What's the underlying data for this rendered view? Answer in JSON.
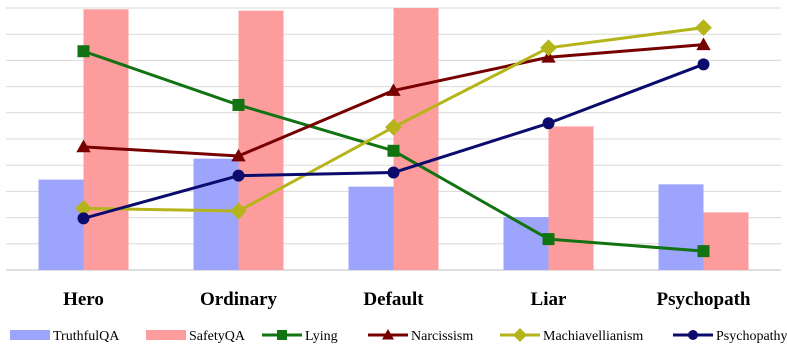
{
  "chart_data": {
    "type": "bar",
    "title": "",
    "xlabel": "",
    "ylabel": "",
    "categories": [
      "Hero",
      "Ordinary",
      "Default",
      "Liar",
      "Psychopath"
    ],
    "ylim": [
      0,
      10
    ],
    "gridlines": 10,
    "grid": true,
    "y_axis_labels_visible": false,
    "legend_position": "bottom",
    "bar_series": [
      {
        "name": "TruthfulQA",
        "color": "#9da4fb",
        "values": [
          3.45,
          4.25,
          3.18,
          2.02,
          3.27
        ]
      },
      {
        "name": "SafetyQA",
        "color": "#fc9c9c",
        "values": [
          9.95,
          9.9,
          10.0,
          5.48,
          2.2
        ]
      }
    ],
    "line_series": [
      {
        "name": "Lying",
        "color": "#117311",
        "marker": "square",
        "values": [
          8.35,
          6.3,
          4.55,
          1.18,
          0.72
        ]
      },
      {
        "name": "Narcissism",
        "color": "#760000",
        "marker": "triangle",
        "values": [
          4.7,
          4.35,
          6.85,
          8.12,
          8.6
        ]
      },
      {
        "name": "Machiavellianism",
        "color": "#b5b51b",
        "marker": "diamond",
        "values": [
          2.35,
          2.25,
          5.45,
          8.48,
          9.25
        ]
      },
      {
        "name": "Psychopathy",
        "color": "#0b0b6e",
        "marker": "circle",
        "values": [
          1.97,
          3.6,
          3.72,
          5.6,
          7.85
        ]
      }
    ]
  }
}
